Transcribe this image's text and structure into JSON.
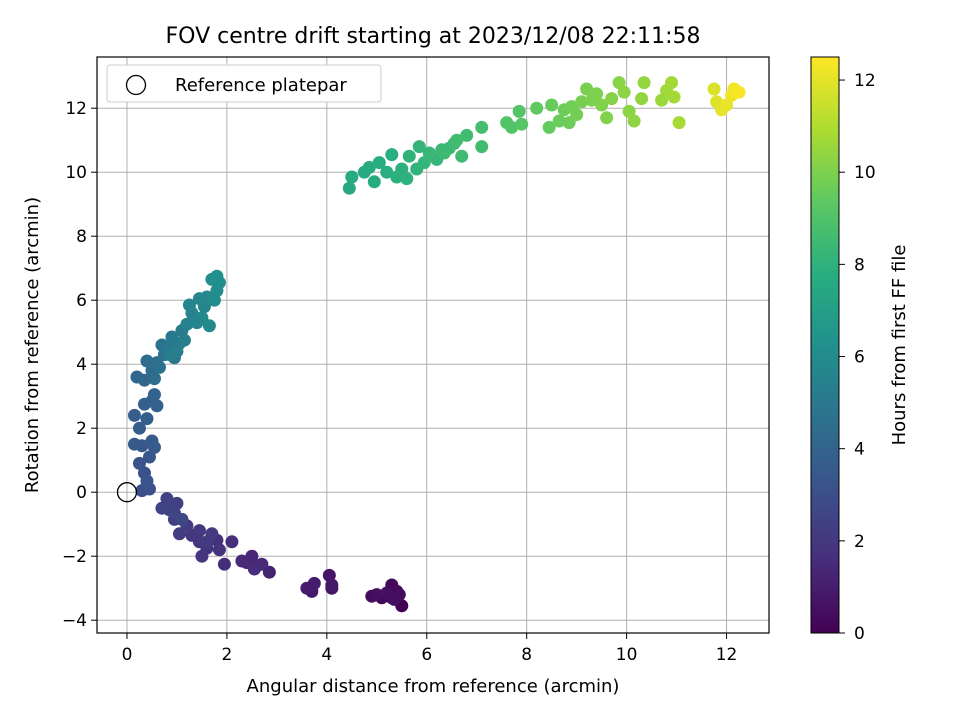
{
  "chart_data": {
    "type": "scatter",
    "title": "FOV centre drift starting at 2023/12/08 22:11:58",
    "xlabel": "Angular distance from reference (arcmin)",
    "ylabel": "Rotation from reference (arcmin)",
    "xlim": [
      -0.6,
      12.85
    ],
    "ylim": [
      -4.4,
      13.6
    ],
    "xticks": [
      "0",
      "2",
      "4",
      "6",
      "8",
      "10",
      "12"
    ],
    "yticks": [
      "−4",
      "−2",
      "0",
      "2",
      "4",
      "6",
      "8",
      "10",
      "12"
    ],
    "grid": true,
    "legend": {
      "placement": "top-left",
      "entries": [
        "Reference platepar"
      ]
    },
    "reference_point": {
      "x": 0,
      "y": 0
    },
    "colorbar": {
      "label": "Hours from first FF file",
      "range": [
        0,
        12.5
      ],
      "ticks": [
        "0",
        "2",
        "4",
        "6",
        "8",
        "10",
        "12"
      ],
      "colormap": "viridis"
    },
    "points": [
      {
        "x": 5.5,
        "y": -3.55,
        "c": 0.0
      },
      {
        "x": 5.3,
        "y": -3.3,
        "c": 0.1
      },
      {
        "x": 5.2,
        "y": -3.2,
        "c": 0.15
      },
      {
        "x": 5.4,
        "y": -3.1,
        "c": 0.2
      },
      {
        "x": 5.1,
        "y": -3.3,
        "c": 0.25
      },
      {
        "x": 5.3,
        "y": -2.9,
        "c": 0.3
      },
      {
        "x": 4.9,
        "y": -3.25,
        "c": 0.35
      },
      {
        "x": 5.45,
        "y": -3.2,
        "c": 0.4
      },
      {
        "x": 5.0,
        "y": -3.2,
        "c": 0.45
      },
      {
        "x": 5.35,
        "y": -3.35,
        "c": 0.5
      },
      {
        "x": 5.2,
        "y": -3.15,
        "c": 0.55
      },
      {
        "x": 4.1,
        "y": -3.0,
        "c": 0.7
      },
      {
        "x": 4.05,
        "y": -2.6,
        "c": 0.75
      },
      {
        "x": 4.1,
        "y": -2.9,
        "c": 0.8
      },
      {
        "x": 3.7,
        "y": -3.1,
        "c": 0.9
      },
      {
        "x": 3.6,
        "y": -3.0,
        "c": 0.95
      },
      {
        "x": 3.75,
        "y": -2.85,
        "c": 1.0
      },
      {
        "x": 2.85,
        "y": -2.5,
        "c": 1.2
      },
      {
        "x": 2.6,
        "y": -2.3,
        "c": 1.3
      },
      {
        "x": 2.5,
        "y": -2.0,
        "c": 1.35
      },
      {
        "x": 2.4,
        "y": -2.2,
        "c": 1.4
      },
      {
        "x": 2.3,
        "y": -2.15,
        "c": 1.45
      },
      {
        "x": 2.7,
        "y": -2.25,
        "c": 1.5
      },
      {
        "x": 2.55,
        "y": -2.4,
        "c": 1.55
      },
      {
        "x": 1.95,
        "y": -2.25,
        "c": 1.6
      },
      {
        "x": 2.1,
        "y": -1.55,
        "c": 1.7
      },
      {
        "x": 1.8,
        "y": -1.5,
        "c": 1.75
      },
      {
        "x": 1.85,
        "y": -1.8,
        "c": 1.8
      },
      {
        "x": 1.6,
        "y": -1.75,
        "c": 1.85
      },
      {
        "x": 1.5,
        "y": -2.0,
        "c": 1.9
      },
      {
        "x": 1.45,
        "y": -1.55,
        "c": 1.95
      },
      {
        "x": 1.3,
        "y": -1.35,
        "c": 2.0
      },
      {
        "x": 1.45,
        "y": -1.2,
        "c": 2.05
      },
      {
        "x": 1.7,
        "y": -1.3,
        "c": 2.1
      },
      {
        "x": 1.6,
        "y": -1.55,
        "c": 2.15
      },
      {
        "x": 1.2,
        "y": -1.05,
        "c": 2.2
      },
      {
        "x": 1.05,
        "y": -1.3,
        "c": 2.25
      },
      {
        "x": 0.95,
        "y": -0.85,
        "c": 2.3
      },
      {
        "x": 1.0,
        "y": -0.35,
        "c": 2.35
      },
      {
        "x": 0.85,
        "y": -0.55,
        "c": 2.4
      },
      {
        "x": 0.8,
        "y": -0.2,
        "c": 2.45
      },
      {
        "x": 0.7,
        "y": -0.5,
        "c": 2.5
      },
      {
        "x": 0.95,
        "y": -0.65,
        "c": 2.55
      },
      {
        "x": 1.1,
        "y": -0.85,
        "c": 2.6
      },
      {
        "x": 0.3,
        "y": 0.05,
        "c": 3.0
      },
      {
        "x": 0.45,
        "y": 0.1,
        "c": 3.05
      },
      {
        "x": 0.35,
        "y": 0.6,
        "c": 3.1
      },
      {
        "x": 0.4,
        "y": 0.35,
        "c": 3.15
      },
      {
        "x": 0.25,
        "y": 0.9,
        "c": 3.2
      },
      {
        "x": 0.45,
        "y": 1.1,
        "c": 3.3
      },
      {
        "x": 0.3,
        "y": 1.45,
        "c": 3.4
      },
      {
        "x": 0.15,
        "y": 1.5,
        "c": 3.45
      },
      {
        "x": 0.5,
        "y": 1.6,
        "c": 3.5
      },
      {
        "x": 0.55,
        "y": 1.4,
        "c": 3.55
      },
      {
        "x": 0.25,
        "y": 2.0,
        "c": 3.6
      },
      {
        "x": 0.15,
        "y": 2.4,
        "c": 3.65
      },
      {
        "x": 0.4,
        "y": 2.3,
        "c": 3.7
      },
      {
        "x": 0.35,
        "y": 2.75,
        "c": 3.75
      },
      {
        "x": 0.5,
        "y": 2.85,
        "c": 3.8
      },
      {
        "x": 0.6,
        "y": 2.7,
        "c": 3.9
      },
      {
        "x": 0.55,
        "y": 3.05,
        "c": 3.95
      },
      {
        "x": 0.35,
        "y": 3.5,
        "c": 4.1
      },
      {
        "x": 0.2,
        "y": 3.6,
        "c": 4.15
      },
      {
        "x": 0.5,
        "y": 3.8,
        "c": 4.3
      },
      {
        "x": 0.4,
        "y": 4.1,
        "c": 4.4
      },
      {
        "x": 0.6,
        "y": 4.05,
        "c": 4.5
      },
      {
        "x": 0.55,
        "y": 3.55,
        "c": 4.45
      },
      {
        "x": 0.65,
        "y": 3.9,
        "c": 4.55
      },
      {
        "x": 0.75,
        "y": 4.3,
        "c": 4.7
      },
      {
        "x": 0.7,
        "y": 4.6,
        "c": 4.8
      },
      {
        "x": 0.85,
        "y": 4.5,
        "c": 4.9
      },
      {
        "x": 0.95,
        "y": 4.2,
        "c": 5.0
      },
      {
        "x": 0.9,
        "y": 4.85,
        "c": 5.05
      },
      {
        "x": 1.05,
        "y": 4.65,
        "c": 5.1
      },
      {
        "x": 1.1,
        "y": 5.05,
        "c": 5.2
      },
      {
        "x": 0.85,
        "y": 4.3,
        "c": 5.25
      },
      {
        "x": 1.0,
        "y": 4.4,
        "c": 5.3
      },
      {
        "x": 1.15,
        "y": 4.75,
        "c": 5.35
      },
      {
        "x": 1.2,
        "y": 5.25,
        "c": 5.45
      },
      {
        "x": 1.3,
        "y": 5.6,
        "c": 5.55
      },
      {
        "x": 1.25,
        "y": 5.85,
        "c": 5.6
      },
      {
        "x": 1.45,
        "y": 6.05,
        "c": 5.7
      },
      {
        "x": 1.55,
        "y": 5.8,
        "c": 5.75
      },
      {
        "x": 1.6,
        "y": 6.1,
        "c": 5.8
      },
      {
        "x": 1.5,
        "y": 5.45,
        "c": 5.85
      },
      {
        "x": 1.65,
        "y": 5.2,
        "c": 5.9
      },
      {
        "x": 1.4,
        "y": 5.3,
        "c": 5.65
      },
      {
        "x": 1.75,
        "y": 6.0,
        "c": 6.0
      },
      {
        "x": 1.7,
        "y": 6.65,
        "c": 6.1
      },
      {
        "x": 1.85,
        "y": 6.55,
        "c": 6.15
      },
      {
        "x": 1.8,
        "y": 6.75,
        "c": 6.2
      },
      {
        "x": 1.8,
        "y": 6.3,
        "c": 6.05
      },
      {
        "x": 4.45,
        "y": 9.5,
        "c": 7.5
      },
      {
        "x": 4.5,
        "y": 9.85,
        "c": 7.55
      },
      {
        "x": 4.75,
        "y": 10.0,
        "c": 7.6
      },
      {
        "x": 4.85,
        "y": 10.15,
        "c": 7.65
      },
      {
        "x": 4.95,
        "y": 9.7,
        "c": 7.7
      },
      {
        "x": 5.05,
        "y": 10.3,
        "c": 7.75
      },
      {
        "x": 5.2,
        "y": 10.0,
        "c": 7.8
      },
      {
        "x": 5.3,
        "y": 10.55,
        "c": 7.85
      },
      {
        "x": 5.4,
        "y": 9.85,
        "c": 7.9
      },
      {
        "x": 5.5,
        "y": 10.1,
        "c": 7.95
      },
      {
        "x": 5.6,
        "y": 9.8,
        "c": 8.0
      },
      {
        "x": 5.65,
        "y": 10.5,
        "c": 8.05
      },
      {
        "x": 5.8,
        "y": 10.1,
        "c": 8.1
      },
      {
        "x": 5.85,
        "y": 10.8,
        "c": 8.15
      },
      {
        "x": 5.95,
        "y": 10.3,
        "c": 8.2
      },
      {
        "x": 6.05,
        "y": 10.6,
        "c": 8.25
      },
      {
        "x": 6.2,
        "y": 10.4,
        "c": 8.3
      },
      {
        "x": 6.3,
        "y": 10.7,
        "c": 8.35
      },
      {
        "x": 6.45,
        "y": 10.75,
        "c": 8.4
      },
      {
        "x": 6.55,
        "y": 10.9,
        "c": 8.45
      },
      {
        "x": 6.7,
        "y": 10.5,
        "c": 8.5
      },
      {
        "x": 6.8,
        "y": 11.15,
        "c": 8.55
      },
      {
        "x": 6.6,
        "y": 11.0,
        "c": 8.6
      },
      {
        "x": 6.35,
        "y": 10.6,
        "c": 8.45
      },
      {
        "x": 7.1,
        "y": 10.8,
        "c": 8.6
      },
      {
        "x": 7.1,
        "y": 11.4,
        "c": 8.7
      },
      {
        "x": 7.6,
        "y": 11.55,
        "c": 9.0
      },
      {
        "x": 7.7,
        "y": 11.4,
        "c": 9.05
      },
      {
        "x": 7.85,
        "y": 11.9,
        "c": 9.1
      },
      {
        "x": 7.9,
        "y": 11.5,
        "c": 9.15
      },
      {
        "x": 8.2,
        "y": 12.0,
        "c": 9.4
      },
      {
        "x": 8.45,
        "y": 11.4,
        "c": 9.5
      },
      {
        "x": 8.5,
        "y": 12.1,
        "c": 9.55
      },
      {
        "x": 8.65,
        "y": 11.6,
        "c": 9.6
      },
      {
        "x": 8.75,
        "y": 11.95,
        "c": 9.65
      },
      {
        "x": 8.85,
        "y": 11.55,
        "c": 9.7
      },
      {
        "x": 8.9,
        "y": 12.05,
        "c": 9.75
      },
      {
        "x": 9.0,
        "y": 11.8,
        "c": 9.8
      },
      {
        "x": 9.1,
        "y": 12.2,
        "c": 9.85
      },
      {
        "x": 9.2,
        "y": 12.6,
        "c": 9.9
      },
      {
        "x": 9.3,
        "y": 12.25,
        "c": 9.95
      },
      {
        "x": 9.4,
        "y": 12.45,
        "c": 10.0
      },
      {
        "x": 9.5,
        "y": 12.1,
        "c": 10.05
      },
      {
        "x": 9.6,
        "y": 11.7,
        "c": 10.1
      },
      {
        "x": 9.7,
        "y": 12.3,
        "c": 10.15
      },
      {
        "x": 9.85,
        "y": 12.8,
        "c": 10.2
      },
      {
        "x": 9.95,
        "y": 12.5,
        "c": 10.25
      },
      {
        "x": 10.05,
        "y": 11.9,
        "c": 10.3
      },
      {
        "x": 10.15,
        "y": 11.6,
        "c": 10.35
      },
      {
        "x": 10.3,
        "y": 12.3,
        "c": 10.4
      },
      {
        "x": 10.35,
        "y": 12.8,
        "c": 10.45
      },
      {
        "x": 10.7,
        "y": 12.25,
        "c": 10.6
      },
      {
        "x": 10.8,
        "y": 12.55,
        "c": 10.65
      },
      {
        "x": 10.9,
        "y": 12.8,
        "c": 10.7
      },
      {
        "x": 10.95,
        "y": 12.35,
        "c": 10.75
      },
      {
        "x": 11.05,
        "y": 11.55,
        "c": 10.8
      },
      {
        "x": 11.75,
        "y": 12.6,
        "c": 11.8
      },
      {
        "x": 11.8,
        "y": 12.2,
        "c": 11.9
      },
      {
        "x": 11.9,
        "y": 11.95,
        "c": 12.0
      },
      {
        "x": 12.0,
        "y": 12.1,
        "c": 12.1
      },
      {
        "x": 12.1,
        "y": 12.4,
        "c": 12.2
      },
      {
        "x": 12.15,
        "y": 12.6,
        "c": 12.3
      },
      {
        "x": 12.25,
        "y": 12.5,
        "c": 12.4
      }
    ]
  }
}
